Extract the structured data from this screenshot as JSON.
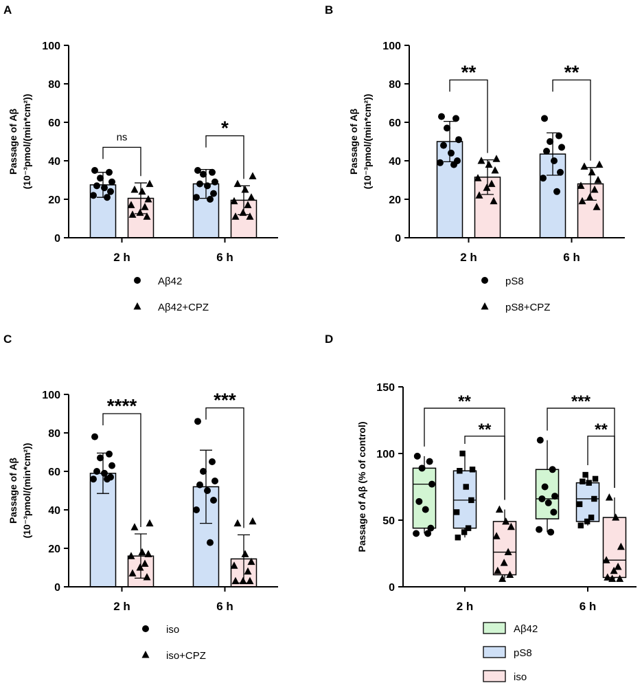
{
  "colors": {
    "blue_fill": "#cfe0f6",
    "pink_fill": "#fbe2e3",
    "green_fill": "#d2f5d3",
    "stroke": "#000000"
  },
  "chart_data": [
    {
      "panel": "A",
      "type": "bar",
      "categories": [
        "2 h",
        "6 h"
      ],
      "ylabel_line1": "Passage of Aβ",
      "ylabel_line2": "(10⁻³pmol/(min*cm²))",
      "ylim": [
        0,
        100
      ],
      "yticks": [
        "0",
        "20",
        "40",
        "60",
        "80",
        "100"
      ],
      "series": [
        {
          "name": "Aβ42",
          "marker": "circle",
          "fill": "blue",
          "means": [
            27.5,
            28
          ],
          "sd": [
            6.5,
            7.5
          ],
          "points": [
            [
              35,
              34,
              31,
              29,
              27,
              26,
              24,
              22,
              21
            ],
            [
              35,
              34,
              33,
              29,
              28,
              27,
              23,
              21,
              20
            ]
          ]
        },
        {
          "name": "Aβ42+CPZ",
          "marker": "triangle",
          "fill": "pink",
          "means": [
            20.5,
            19.5
          ],
          "sd": [
            8,
            7.5
          ],
          "points": [
            [
              28,
              25,
              24,
              20,
              17,
              16,
              13,
              12,
              11
            ],
            [
              32,
              28,
              25,
              21,
              19,
              17,
              13,
              11,
              11
            ]
          ]
        }
      ],
      "significance": [
        {
          "category": "2 h",
          "label": "ns",
          "y": 47
        },
        {
          "category": "6 h",
          "label": "*",
          "y": 53
        }
      ]
    },
    {
      "panel": "B",
      "type": "bar",
      "categories": [
        "2 h",
        "6 h"
      ],
      "ylabel_line1": "Passage of Aβ",
      "ylabel_line2": "(10⁻³pmol/(min*cm²))",
      "ylim": [
        0,
        100
      ],
      "yticks": [
        "0",
        "20",
        "40",
        "60",
        "80",
        "100"
      ],
      "series": [
        {
          "name": "pS8",
          "marker": "circle",
          "fill": "blue",
          "means": [
            50,
            43.5
          ],
          "sd": [
            10.5,
            11
          ],
          "points": [
            [
              63,
              62,
              57,
              51,
              48,
              44,
              40,
              39,
              38
            ],
            [
              62,
              53,
              50,
              47,
              45,
              40,
              34,
              31,
              24
            ]
          ]
        },
        {
          "name": "pS8+CPZ",
          "marker": "triangle",
          "fill": "pink",
          "means": [
            31.5,
            28
          ],
          "sd": [
            9,
            8.5
          ],
          "points": [
            [
              41,
              40,
              38,
              35,
              31,
              28,
              26,
              22,
              19
            ],
            [
              38,
              37,
              34,
              30,
              27,
              25,
              21,
              19,
              16
            ]
          ]
        }
      ],
      "significance": [
        {
          "category": "2 h",
          "label": "**",
          "y": 82
        },
        {
          "category": "6 h",
          "label": "**",
          "y": 82
        }
      ]
    },
    {
      "panel": "C",
      "type": "bar",
      "categories": [
        "2 h",
        "6 h"
      ],
      "ylabel_line1": "Passage of Aβ",
      "ylabel_line2": "(10⁻³pmol/(min*cm²))",
      "ylim": [
        0,
        100
      ],
      "yticks": [
        "0",
        "20",
        "40",
        "60",
        "80",
        "100"
      ],
      "series": [
        {
          "name": "iso",
          "marker": "circle",
          "fill": "blue",
          "means": [
            59,
            52
          ],
          "sd": [
            10.5,
            19
          ],
          "points": [
            [
              78,
              69,
              67,
              63,
              60,
              59,
              57,
              56,
              56
            ],
            [
              86,
              65,
              60,
              55,
              53,
              50,
              45,
              40,
              23
            ]
          ]
        },
        {
          "name": "iso+CPZ",
          "marker": "triangle",
          "fill": "pink",
          "means": [
            16,
            14.5
          ],
          "sd": [
            11.5,
            12.5
          ],
          "points": [
            [
              33,
              31,
              18,
              17,
              16,
              12,
              10,
              7,
              5
            ],
            [
              34,
              33,
              17,
              13,
              11,
              8,
              3,
              3,
              3
            ]
          ]
        }
      ],
      "significance": [
        {
          "category": "2 h",
          "label": "****",
          "y": 90
        },
        {
          "category": "6 h",
          "label": "***",
          "y": 93
        }
      ]
    },
    {
      "panel": "D",
      "type": "box",
      "categories": [
        "2 h",
        "6 h"
      ],
      "ylabel": "Passage of Aβ (% of control)",
      "ylim": [
        0,
        150
      ],
      "yticks": [
        "0",
        "50",
        "100",
        "150"
      ],
      "series": [
        {
          "name": "Aβ42",
          "marker": "circle",
          "fill": "green",
          "boxes": [
            {
              "min": 40,
              "q1": 44,
              "median": 77,
              "q3": 89,
              "max": 98,
              "points": [
                98,
                94,
                89,
                77,
                64,
                58,
                44,
                40,
                40
              ]
            },
            {
              "min": 41,
              "q1": 51,
              "median": 66,
              "q3": 88,
              "max": 110,
              "points": [
                110,
                88,
                75,
                68,
                66,
                63,
                56,
                43,
                41
              ]
            }
          ]
        },
        {
          "name": "pS8",
          "marker": "square",
          "fill": "blue",
          "boxes": [
            {
              "min": 37,
              "q1": 44,
              "median": 65,
              "q3": 87,
              "max": 100,
              "points": [
                100,
                88,
                87,
                75,
                65,
                56,
                44,
                41,
                37
              ]
            },
            {
              "min": 46,
              "q1": 49,
              "median": 66,
              "q3": 78,
              "max": 84,
              "points": [
                84,
                81,
                79,
                78,
                66,
                62,
                52,
                49,
                46
              ]
            }
          ]
        },
        {
          "name": "iso",
          "marker": "triangle",
          "fill": "pink",
          "boxes": [
            {
              "min": 6,
              "q1": 9,
              "median": 26,
              "q3": 49,
              "max": 58,
              "points": [
                58,
                49,
                45,
                38,
                26,
                18,
                12,
                9,
                6
              ]
            },
            {
              "min": 6,
              "q1": 7,
              "median": 20,
              "q3": 52,
              "max": 67,
              "points": [
                67,
                52,
                30,
                20,
                15,
                12,
                7,
                6,
                6
              ]
            }
          ]
        }
      ],
      "significance": [
        {
          "category": "2 h",
          "from": 0,
          "to": 2,
          "label": "**",
          "y": 134
        },
        {
          "category": "2 h",
          "from": 1,
          "to": 2,
          "label": "**",
          "y": 113
        },
        {
          "category": "6 h",
          "from": 0,
          "to": 2,
          "label": "***",
          "y": 134
        },
        {
          "category": "6 h",
          "from": 1,
          "to": 2,
          "label": "**",
          "y": 113
        }
      ]
    }
  ]
}
